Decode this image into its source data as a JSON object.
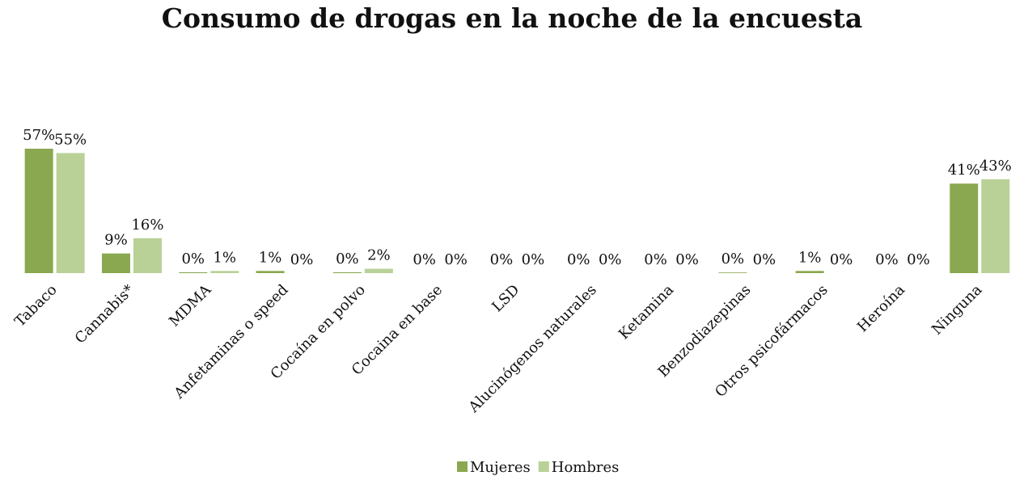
{
  "chart_data": {
    "type": "bar",
    "title": "Consumo de drogas en la noche de la encuesta",
    "categories": [
      "Tabaco",
      "Cannabis*",
      "MDMA",
      "Anfetaminas o speed",
      "Cocaína en polvo",
      "Cocaina en base",
      "LSD",
      "Alucinógenos naturales",
      "Ketamina",
      "Benzodiazepinas",
      "Otros psicofármacos",
      "Heroína",
      "Ninguna"
    ],
    "series": [
      {
        "name": "Mujeres",
        "color": "#8aa84f",
        "values": [
          57,
          9,
          0.4,
          1,
          0.4,
          0,
          0,
          0,
          0,
          0.3,
          1,
          0,
          41
        ],
        "value_labels": [
          "57%",
          "9%",
          "0%",
          "1%",
          "0%",
          "0%",
          "0%",
          "0%",
          "0%",
          "0%",
          "1%",
          "0%",
          "41%"
        ]
      },
      {
        "name": "Hombres",
        "color": "#b9d197",
        "values": [
          55,
          16,
          1,
          0,
          2,
          0,
          0,
          0,
          0,
          0,
          0,
          0,
          43
        ],
        "value_labels": [
          "55%",
          "16%",
          "1%",
          "0%",
          "2%",
          "0%",
          "0%",
          "0%",
          "0%",
          "0%",
          "0%",
          "0%",
          "43%"
        ]
      }
    ],
    "legend": "bottom"
  }
}
